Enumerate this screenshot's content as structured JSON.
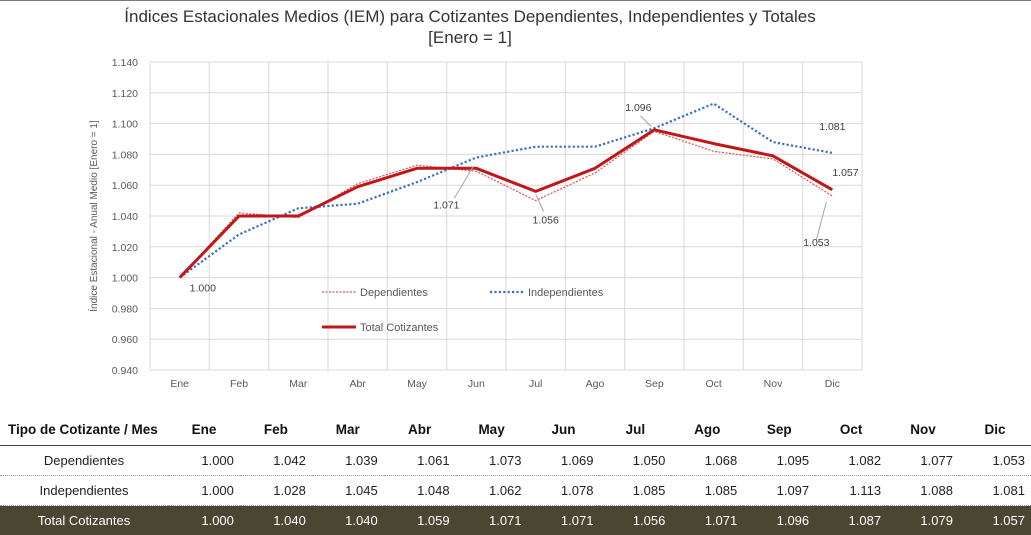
{
  "chart_data": {
    "type": "line",
    "title": "Índices Estacionales Medios (IEM) para Cotizantes Dependientes, Independientes y Totales",
    "subtitle": "[Enero = 1]",
    "ylabel": "Índice Estacional - Anual Medio [Enero = 1]",
    "xlabel": "",
    "ylim": [
      0.94,
      1.14
    ],
    "yticks": [
      "0.940",
      "0.960",
      "0.980",
      "1.000",
      "1.020",
      "1.040",
      "1.060",
      "1.080",
      "1.100",
      "1.120",
      "1.140"
    ],
    "grid": true,
    "legend_position": "inside-bottom-center",
    "categories": [
      "Ene",
      "Feb",
      "Mar",
      "Abr",
      "May",
      "Jun",
      "Jul",
      "Ago",
      "Sep",
      "Oct",
      "Nov",
      "Dic"
    ],
    "series": [
      {
        "name": "Dependientes",
        "color": "#e05050",
        "style": "dotted-thin",
        "values": [
          1.0,
          1.042,
          1.039,
          1.061,
          1.073,
          1.069,
          1.05,
          1.068,
          1.095,
          1.082,
          1.077,
          1.053
        ]
      },
      {
        "name": "Independientes",
        "color": "#3a6fc4",
        "style": "dotted",
        "values": [
          1.0,
          1.028,
          1.045,
          1.048,
          1.062,
          1.078,
          1.085,
          1.085,
          1.097,
          1.113,
          1.088,
          1.081
        ]
      },
      {
        "name": "Total Cotizantes",
        "color": "#c01818",
        "style": "solid-thick",
        "values": [
          1.0,
          1.04,
          1.04,
          1.059,
          1.071,
          1.071,
          1.056,
          1.071,
          1.096,
          1.087,
          1.079,
          1.057
        ]
      }
    ],
    "annotations": [
      {
        "text": "1.000",
        "series": 2,
        "index": 0
      },
      {
        "text": "1.071",
        "series": 2,
        "index": 5
      },
      {
        "text": "1.056",
        "series": 2,
        "index": 6
      },
      {
        "text": "1.096",
        "series": 2,
        "index": 8
      },
      {
        "text": "1.081",
        "series": 1,
        "index": 11
      },
      {
        "text": "1.057",
        "series": 2,
        "index": 11
      },
      {
        "text": "1.053",
        "series": 0,
        "index": 11
      }
    ]
  },
  "table": {
    "header_first": "Tipo de Cotizante / Mes",
    "months": [
      "Ene",
      "Feb",
      "Mar",
      "Abr",
      "May",
      "Jun",
      "Jul",
      "Ago",
      "Sep",
      "Oct",
      "Nov",
      "Dic"
    ],
    "rows": [
      {
        "label": "Dependientes",
        "values": [
          "1.000",
          "1.042",
          "1.039",
          "1.061",
          "1.073",
          "1.069",
          "1.050",
          "1.068",
          "1.095",
          "1.082",
          "1.077",
          "1.053"
        ]
      },
      {
        "label": "Independientes",
        "values": [
          "1.000",
          "1.028",
          "1.045",
          "1.048",
          "1.062",
          "1.078",
          "1.085",
          "1.085",
          "1.097",
          "1.113",
          "1.088",
          "1.081"
        ]
      },
      {
        "label": "Total Cotizantes",
        "values": [
          "1.000",
          "1.040",
          "1.040",
          "1.059",
          "1.071",
          "1.071",
          "1.056",
          "1.071",
          "1.096",
          "1.087",
          "1.079",
          "1.057"
        ]
      }
    ]
  }
}
